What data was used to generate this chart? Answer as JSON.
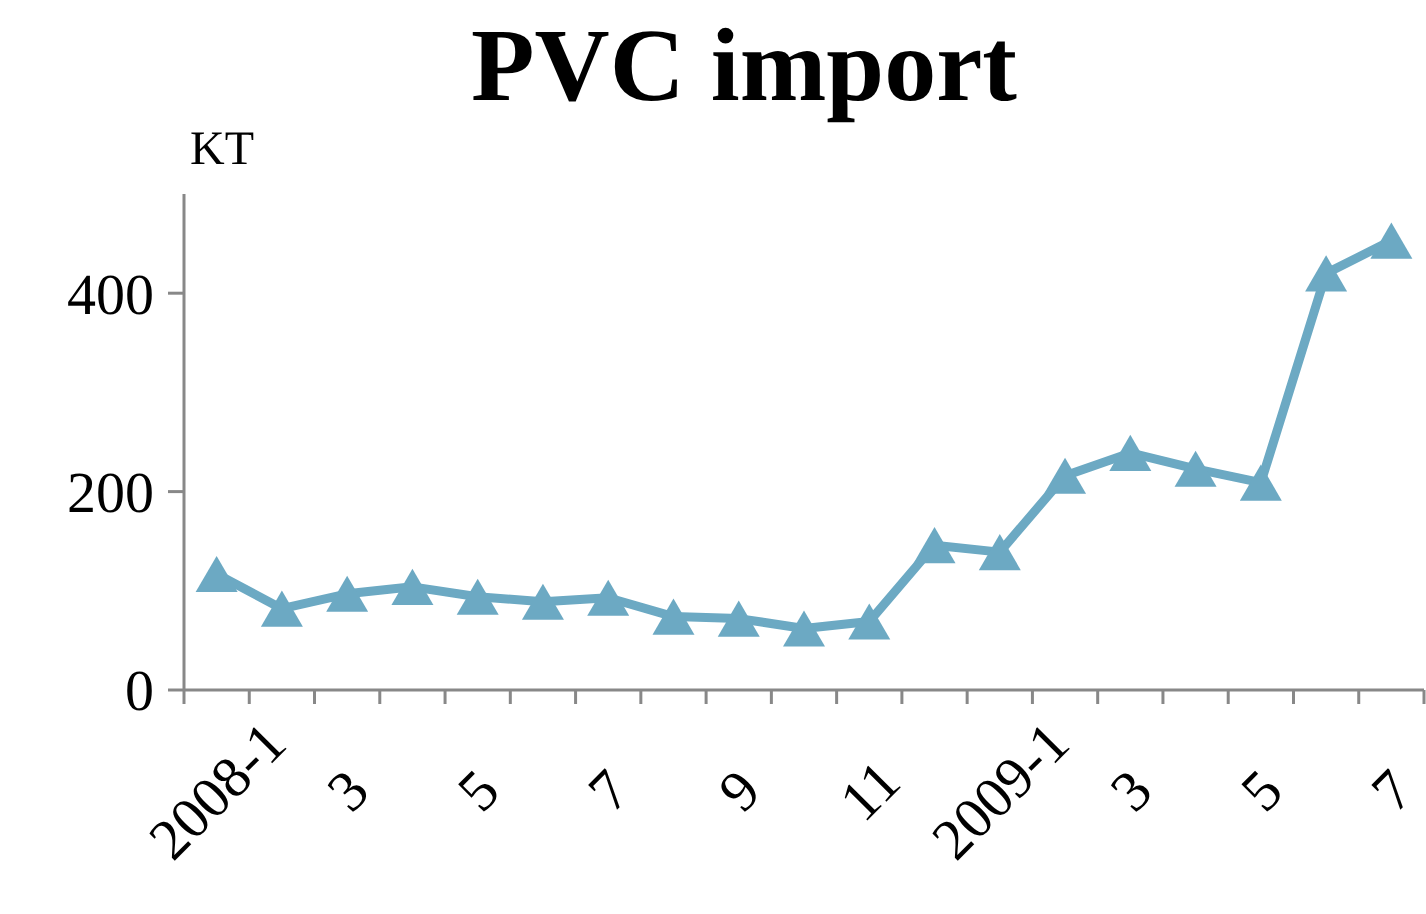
{
  "chart_data": {
    "type": "line",
    "title": "PVC import",
    "ylabel": "KT",
    "categories": [
      "2008-1",
      null,
      "3",
      null,
      "5",
      null,
      "7",
      null,
      "9",
      null,
      "11",
      null,
      "2009-1",
      null,
      "3",
      null,
      "5",
      null,
      "7"
    ],
    "series": [
      {
        "color": "#6ca9c3",
        "values": [
          117,
          82,
          97,
          104,
          94,
          89,
          93,
          74,
          72,
          62,
          69,
          146,
          139,
          216,
          239,
          223,
          209,
          420,
          453
        ]
      }
    ],
    "ylim": [
      0,
      500
    ],
    "yticks": [
      0,
      200,
      400
    ],
    "marker": "triangle",
    "line_style": "solid"
  }
}
